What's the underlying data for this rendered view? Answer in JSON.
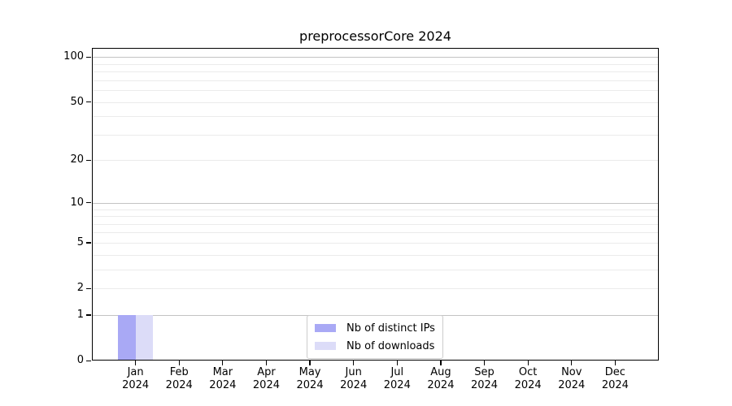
{
  "chart_data": {
    "type": "bar",
    "title": "preprocessorCore 2024",
    "x_month_labels": [
      "Jan",
      "Feb",
      "Mar",
      "Apr",
      "May",
      "Jun",
      "Jul",
      "Aug",
      "Sep",
      "Oct",
      "Nov",
      "Dec"
    ],
    "x_year_label": "2024",
    "series": [
      {
        "name": "Nb of distinct IPs",
        "color": "#a9a9f5",
        "values": [
          1,
          0,
          0,
          0,
          0,
          0,
          0,
          0,
          0,
          0,
          0,
          0
        ]
      },
      {
        "name": "Nb of downloads",
        "color": "#dcdcf8",
        "values": [
          1,
          0,
          0,
          0,
          0,
          0,
          0,
          0,
          0,
          0,
          0,
          0
        ]
      }
    ],
    "yscale": "log1p",
    "ylim": [
      0,
      115
    ],
    "ytick_labels": [
      0,
      1,
      2,
      5,
      10,
      20,
      50,
      100
    ],
    "ytick_major_grid": [
      1,
      10,
      100
    ],
    "ytick_minor_grid": [
      2,
      3,
      4,
      5,
      6,
      7,
      8,
      9,
      20,
      30,
      40,
      50,
      60,
      70,
      80,
      90
    ],
    "grid": true,
    "legend_position": "lower center"
  },
  "colors": {
    "background": "#ffffff",
    "axis": "#000000",
    "grid_major": "#c3c3c3",
    "grid_minor": "#ebebeb",
    "bar_distinct_ips": "#a9a9f5",
    "bar_downloads": "#dcdcf8",
    "legend_border": "#cccccc",
    "text": "#000000"
  }
}
